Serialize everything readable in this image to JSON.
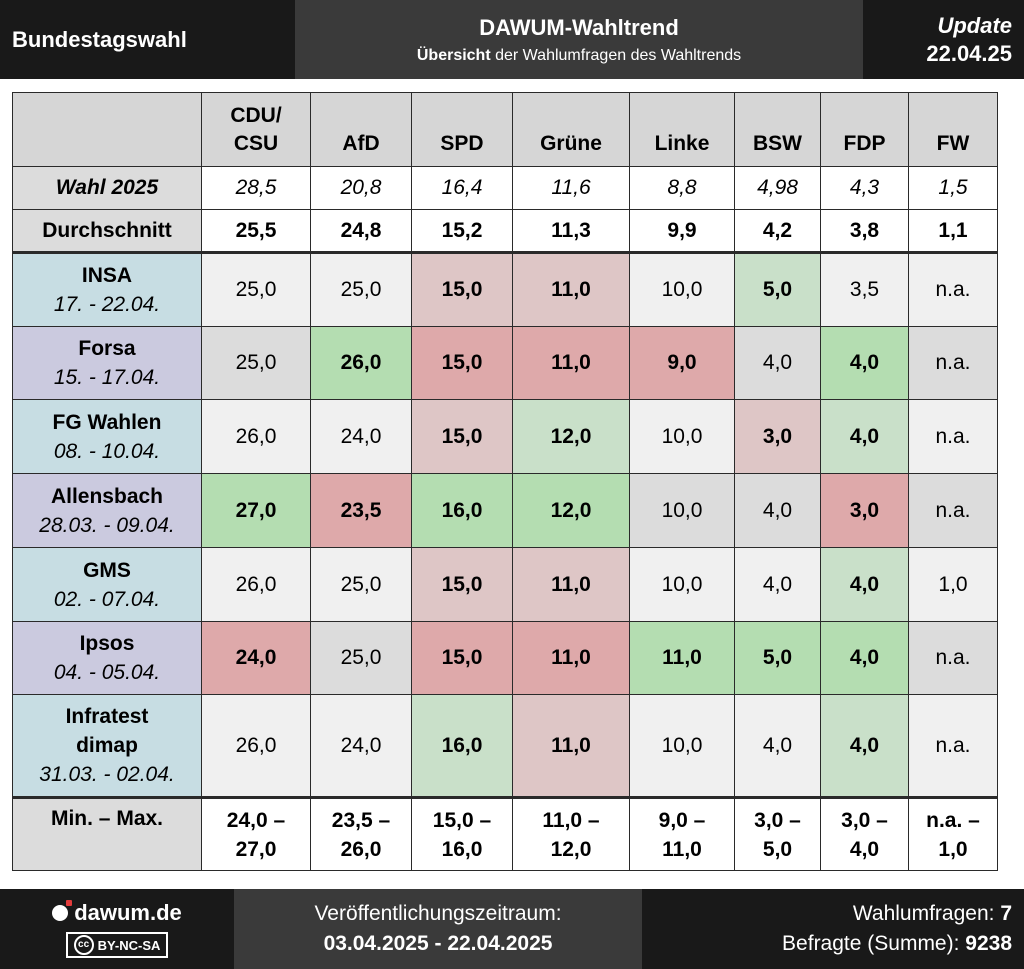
{
  "header": {
    "left_title": "Bundestagswahl",
    "title": "DAWUM-Wahltrend",
    "subtitle_bold": "Übersicht",
    "subtitle_rest": " der Wahlumfragen des Wahltrends",
    "update_label": "Update",
    "update_date": "22.04.25"
  },
  "table": {
    "columns": [
      {
        "line1": "CDU/",
        "line2": "CSU"
      },
      {
        "line1": "",
        "line2": "AfD"
      },
      {
        "line1": "",
        "line2": "SPD"
      },
      {
        "line1": "",
        "line2": "Grüne"
      },
      {
        "line1": "",
        "line2": "Linke"
      },
      {
        "line1": "",
        "line2": "BSW"
      },
      {
        "line1": "",
        "line2": "FDP"
      },
      {
        "line1": "",
        "line2": "FW"
      }
    ],
    "election_row": {
      "label": "Wahl 2025",
      "values": [
        "28,5",
        "20,8",
        "16,4",
        "11,6",
        "8,8",
        "4,98",
        "4,3",
        "1,5"
      ]
    },
    "average_row": {
      "label": "Durchschnitt",
      "values": [
        "25,5",
        "24,8",
        "15,2",
        "11,3",
        "9,9",
        "4,2",
        "3,8",
        "1,1"
      ]
    },
    "polls": [
      {
        "institute": "INSA",
        "date": "17. - 22.04.",
        "values": [
          "25,0",
          "25,0",
          "15,0",
          "11,0",
          "10,0",
          "5,0",
          "3,5",
          "n.a."
        ]
      },
      {
        "institute": "Forsa",
        "date": "15. - 17.04.",
        "values": [
          "25,0",
          "26,0",
          "15,0",
          "11,0",
          "9,0",
          "4,0",
          "4,0",
          "n.a."
        ]
      },
      {
        "institute": "FG Wahlen",
        "date": "08. - 10.04.",
        "values": [
          "26,0",
          "24,0",
          "15,0",
          "12,0",
          "10,0",
          "3,0",
          "4,0",
          "n.a."
        ]
      },
      {
        "institute": "Allensbach",
        "date": "28.03. - 09.04.",
        "values": [
          "27,0",
          "23,5",
          "16,0",
          "12,0",
          "10,0",
          "4,0",
          "3,0",
          "n.a."
        ]
      },
      {
        "institute": "GMS",
        "date": "02. - 07.04.",
        "values": [
          "26,0",
          "25,0",
          "15,0",
          "11,0",
          "10,0",
          "4,0",
          "4,0",
          "1,0"
        ]
      },
      {
        "institute": "Ipsos",
        "date": "04. - 05.04.",
        "values": [
          "24,0",
          "25,0",
          "15,0",
          "11,0",
          "11,0",
          "5,0",
          "4,0",
          "n.a."
        ]
      },
      {
        "institute_line1": "Infratest",
        "institute_line2": "dimap",
        "date": "31.03. - 02.04.",
        "values": [
          "26,0",
          "24,0",
          "16,0",
          "11,0",
          "10,0",
          "4,0",
          "4,0",
          "n.a."
        ]
      }
    ],
    "minmax_row": {
      "label": "Min. – Max.",
      "values": [
        {
          "a": "24,0 –",
          "b": "27,0"
        },
        {
          "a": "23,5 –",
          "b": "26,0"
        },
        {
          "a": "15,0 –",
          "b": "16,0"
        },
        {
          "a": "11,0 –",
          "b": "12,0"
        },
        {
          "a": "9,0 –",
          "b": "11,0"
        },
        {
          "a": "3,0 –",
          "b": "5,0"
        },
        {
          "a": "3,0 –",
          "b": "4,0"
        },
        {
          "a": "n.a. –",
          "b": "1,0"
        }
      ]
    }
  },
  "footer": {
    "site": "dawum.de",
    "license": "BY-NC-SA",
    "license_cc": "cc",
    "period_label": "Veröffentlichungszeitraum:",
    "period_value": "03.04.2025 - 22.04.2025",
    "polls_label": "Wahlumfragen: ",
    "polls_value": "7",
    "respondents_label": "Befragte (Summe): ",
    "respondents_value": "9238"
  },
  "colors": {
    "strong_green": "#b4ddb1",
    "light_green": "#c9e0c9",
    "strong_red": "#dea9aa",
    "light_red": "#dec6c6",
    "neutral": "#f0f0f0",
    "neutral_gray": "#dcdcdc",
    "label_blue": "#c7dde3",
    "label_purple": "#cbcadf"
  }
}
